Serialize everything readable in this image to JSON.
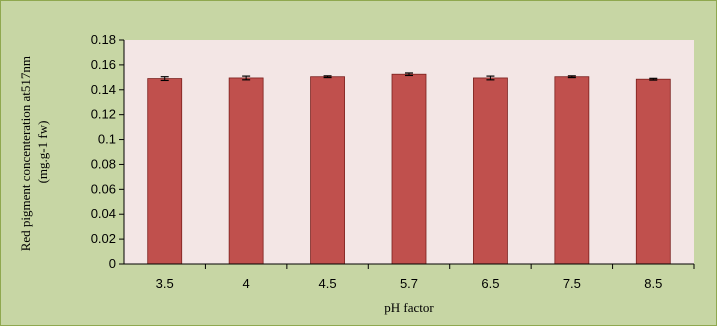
{
  "chart_data": {
    "type": "bar",
    "categories": [
      "3.5",
      "4",
      "4.5",
      "5.7",
      "6.5",
      "7.5",
      "8.5"
    ],
    "values": [
      0.149,
      0.1495,
      0.1505,
      0.1525,
      0.1495,
      0.1505,
      0.1485
    ],
    "errors": [
      0.0015,
      0.0015,
      0.0007,
      0.001,
      0.0015,
      0.0007,
      0.0007
    ],
    "title": "",
    "xlabel": "pH factor",
    "ylabel_lines": [
      "Red pigment concenteration at517nm",
      "(mg.g-1 fw)"
    ],
    "yticks": [
      "0",
      "0.02",
      "0.04",
      "0.06",
      "0.08",
      "0.1",
      "0.12",
      "0.14",
      "0.16",
      "0.18"
    ],
    "ylim": [
      0,
      0.18
    ],
    "grid": false,
    "legend": "none",
    "colors": {
      "bar": "#c0504d",
      "bar_edge": "#7a1f1c",
      "plot_bg": "#f3e6e5",
      "chart_bg": "#c7d6a4",
      "axis": "#000000"
    }
  }
}
